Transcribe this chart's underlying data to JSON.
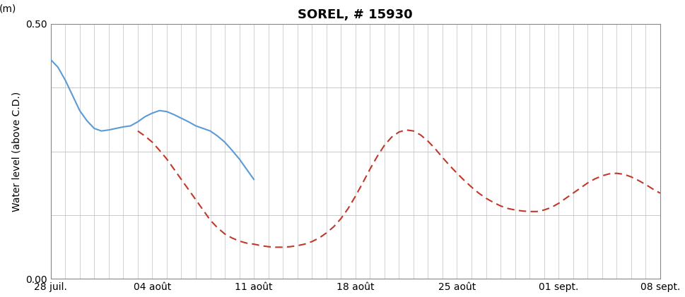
{
  "title": "SOREL, # 15930",
  "ylabel": "Water level (above C.D.)",
  "ylabel_unit": "(m)",
  "ylim": [
    0.0,
    0.5
  ],
  "background_color": "#ffffff",
  "grid_color": "#c0c0c0",
  "xtick_labels": [
    "28 juil.",
    "04 août",
    "11 août",
    "18 août",
    "25 août",
    "01 sept.",
    "08 sept."
  ],
  "solid_color": "#5b9bd5",
  "dashed_color": "#c0392b",
  "solid_x": [
    0,
    0.5,
    1,
    1.5,
    2,
    2.5,
    3,
    3.5,
    4,
    4.5,
    5,
    5.5,
    6,
    6.5,
    7,
    7.5,
    8,
    8.5,
    9,
    9.5,
    10,
    10.5,
    11,
    11.5,
    12,
    12.5,
    13,
    13.5,
    14
  ],
  "solid_y": [
    0.43,
    0.415,
    0.39,
    0.36,
    0.33,
    0.31,
    0.295,
    0.29,
    0.292,
    0.295,
    0.298,
    0.3,
    0.308,
    0.318,
    0.325,
    0.33,
    0.328,
    0.322,
    0.315,
    0.308,
    0.3,
    0.295,
    0.29,
    0.28,
    0.268,
    0.252,
    0.235,
    0.215,
    0.195
  ],
  "dashed_x": [
    6,
    6.5,
    7,
    7.5,
    8,
    8.5,
    9,
    9.5,
    10,
    10.5,
    11,
    11.5,
    12,
    12.5,
    13,
    13.5,
    14,
    14.5,
    15,
    15.5,
    16,
    16.5,
    17,
    17.5,
    18,
    18.5,
    19,
    19.5,
    20,
    20.5,
    21,
    21.5,
    22,
    22.5,
    23,
    23.5,
    24,
    24.5,
    25,
    25.5,
    26,
    26.5,
    27,
    27.5,
    28,
    28.5,
    29,
    29.5,
    30,
    30.5,
    31,
    31.5,
    32,
    32.5,
    33,
    33.5,
    34,
    34.5,
    35,
    35.5,
    36,
    36.5,
    37,
    37.5,
    38,
    38.5,
    39,
    39.5,
    40,
    40.5,
    41,
    41.5,
    42
  ],
  "dashed_y": [
    0.29,
    0.28,
    0.268,
    0.252,
    0.235,
    0.215,
    0.195,
    0.175,
    0.155,
    0.135,
    0.115,
    0.1,
    0.088,
    0.08,
    0.074,
    0.07,
    0.068,
    0.065,
    0.063,
    0.062,
    0.062,
    0.063,
    0.065,
    0.068,
    0.073,
    0.08,
    0.09,
    0.102,
    0.118,
    0.138,
    0.162,
    0.188,
    0.215,
    0.24,
    0.262,
    0.278,
    0.288,
    0.292,
    0.29,
    0.282,
    0.27,
    0.255,
    0.238,
    0.222,
    0.207,
    0.193,
    0.18,
    0.168,
    0.158,
    0.15,
    0.143,
    0.138,
    0.135,
    0.133,
    0.132,
    0.132,
    0.135,
    0.14,
    0.148,
    0.158,
    0.168,
    0.178,
    0.188,
    0.196,
    0.202,
    0.206,
    0.207,
    0.205,
    0.2,
    0.193,
    0.185,
    0.176,
    0.168
  ]
}
